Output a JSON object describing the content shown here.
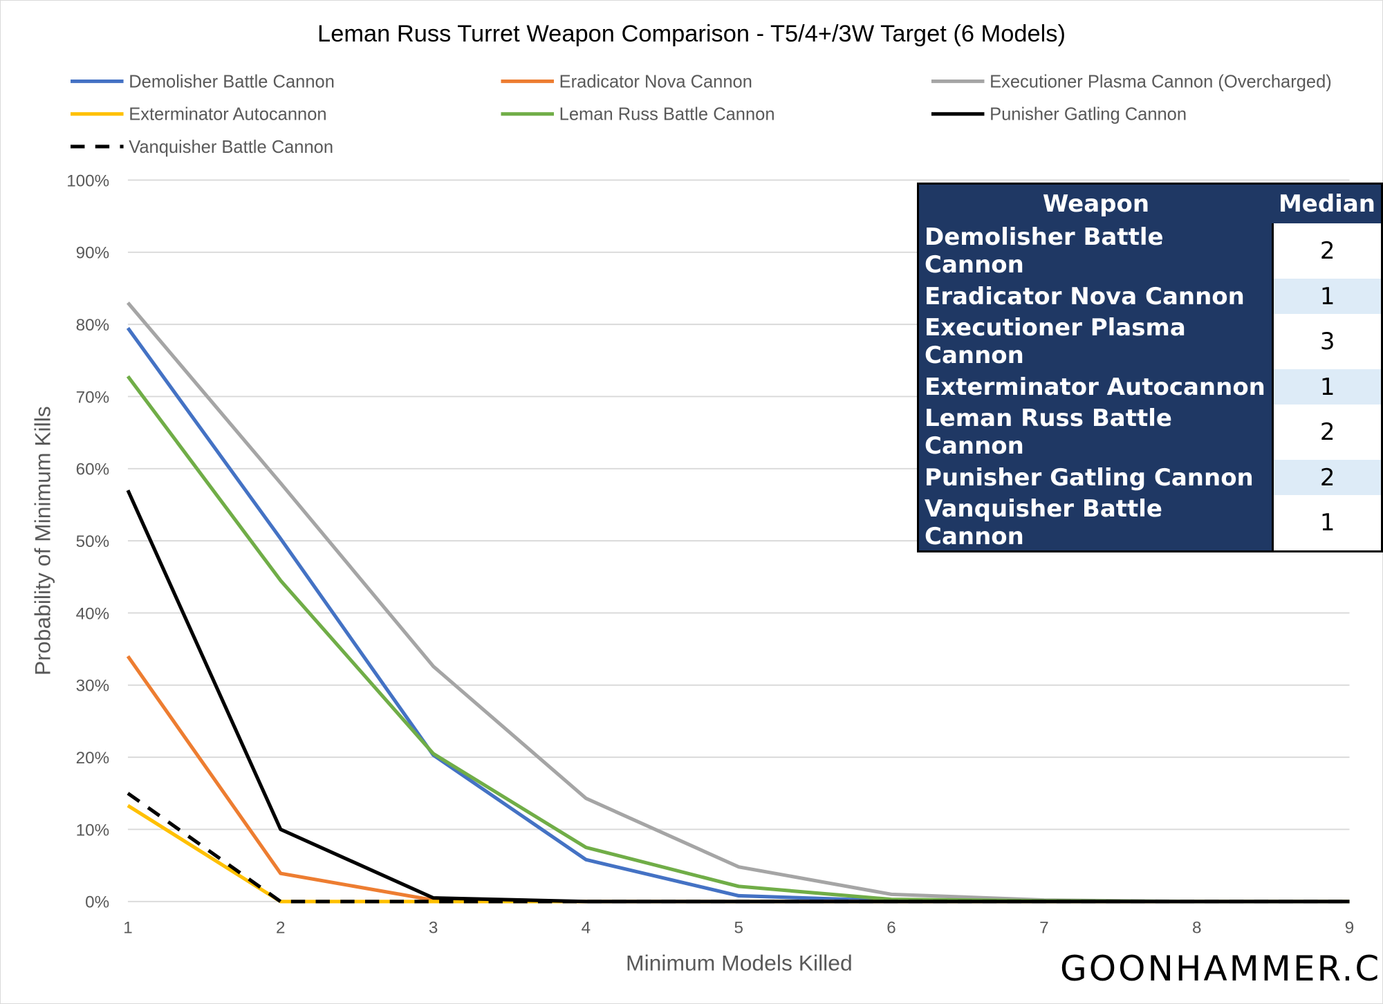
{
  "chart_data": {
    "type": "line",
    "title": "Leman Russ Turret Weapon Comparison - T5/4+/3W Target (6 Models)",
    "xlabel": "Minimum Models Killed",
    "ylabel": "Probability of Minimum Kills",
    "x": [
      1,
      2,
      3,
      4,
      5,
      6,
      7,
      8,
      9
    ],
    "ylim": [
      0,
      100
    ],
    "yticks": [
      "0%",
      "10%",
      "20%",
      "30%",
      "40%",
      "50%",
      "60%",
      "70%",
      "80%",
      "90%",
      "100%"
    ],
    "grid": true,
    "legend": "top",
    "series": [
      {
        "name": "Demolisher Battle Cannon",
        "color": "#4472c4",
        "dash": false,
        "values": [
          79.5,
          50.3,
          20.3,
          5.8,
          0.8,
          0.1,
          0,
          0,
          0
        ]
      },
      {
        "name": "Eradicator Nova Cannon",
        "color": "#ed7d31",
        "dash": false,
        "values": [
          34,
          3.9,
          0.2,
          0,
          0,
          0,
          0,
          0,
          0
        ]
      },
      {
        "name": "Executioner Plasma Cannon (Overcharged)",
        "color": "#a5a5a5",
        "dash": false,
        "values": [
          83,
          58,
          32.6,
          14.3,
          4.8,
          1,
          0.2,
          0,
          0
        ]
      },
      {
        "name": "Exterminator Autocannon",
        "color": "#ffc000",
        "dash": false,
        "values": [
          13.3,
          0,
          0,
          0,
          0,
          0,
          0,
          0,
          0
        ]
      },
      {
        "name": "Leman Russ Battle Cannon",
        "color": "#70ad47",
        "dash": false,
        "values": [
          72.8,
          44.5,
          20.5,
          7.5,
          2.1,
          0.3,
          0.1,
          0,
          0
        ]
      },
      {
        "name": "Punisher Gatling Cannon",
        "color": "#000000",
        "dash": false,
        "values": [
          57,
          10,
          0.5,
          0,
          0,
          0,
          0,
          0,
          0
        ]
      },
      {
        "name": "Vanquisher Battle Cannon",
        "color": "#000000",
        "dash": true,
        "values": [
          15,
          0,
          0,
          0,
          0,
          0,
          0,
          0,
          0
        ]
      }
    ]
  },
  "table": {
    "headers": [
      "Weapon",
      "Median"
    ],
    "rows": [
      {
        "weapon": "Demolisher Battle Cannon",
        "median": "2"
      },
      {
        "weapon": "Eradicator Nova Cannon",
        "median": "1"
      },
      {
        "weapon": "Executioner Plasma Cannon",
        "median": "3"
      },
      {
        "weapon": "Exterminator Autocannon",
        "median": "1"
      },
      {
        "weapon": "Leman Russ Battle Cannon",
        "median": "2"
      },
      {
        "weapon": "Punisher Gatling Cannon",
        "median": "2"
      },
      {
        "weapon": "Vanquisher Battle Cannon",
        "median": "1"
      }
    ]
  },
  "watermark": "GOONHAMMER.COM"
}
